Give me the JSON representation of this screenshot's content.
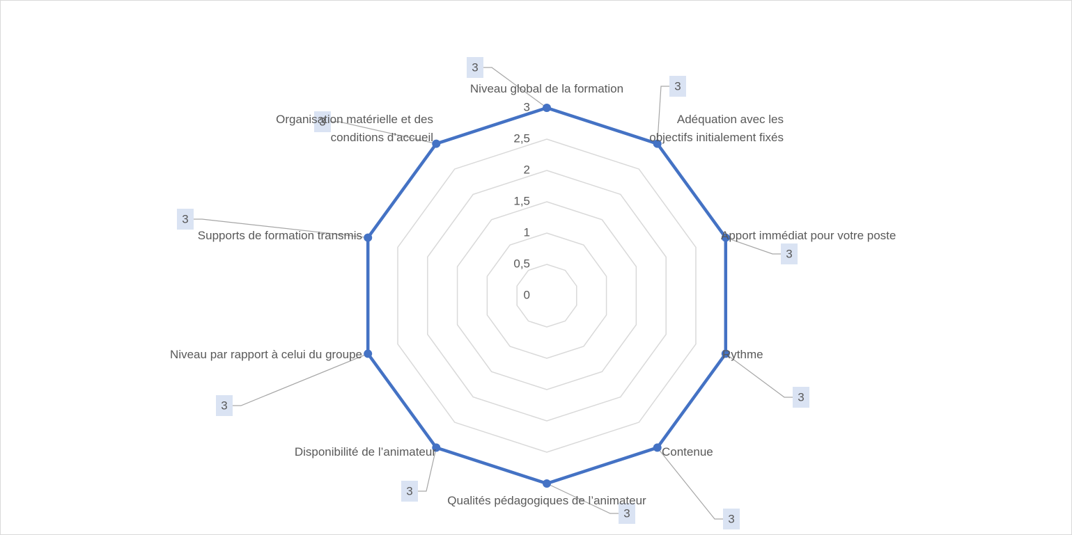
{
  "chart_data": {
    "type": "radar",
    "categories": [
      "Niveau global de la formation",
      "Adéquation avec les objectifs initialement fixés",
      "Apport immédiat pour votre poste",
      "Rythme",
      "Contenue",
      "Qualités pédagogiques de l’animateur",
      "Disponibilité de l’animateur",
      "Niveau par rapport à celui du groupe",
      "Supports de formation transmis",
      "Organisation matérielle et des conditions d’accueil"
    ],
    "values": [
      3,
      3,
      3,
      3,
      3,
      3,
      3,
      3,
      3,
      3
    ],
    "color": "#4472c4",
    "ylim": [
      0,
      3
    ],
    "yticks": [
      0,
      {
        "value": 0.5,
        "label": "0,5"
      },
      1,
      {
        "value": 1.5,
        "label": "1,5"
      },
      2,
      {
        "value": 2.5,
        "label": "2,5"
      },
      3
    ],
    "grid": true
  }
}
